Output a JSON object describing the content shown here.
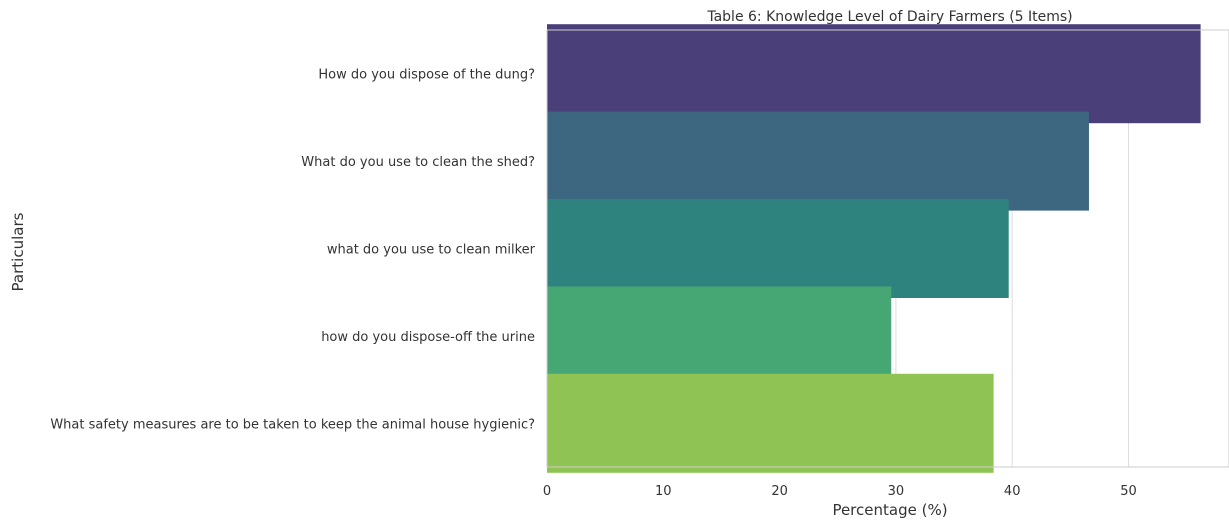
{
  "chart_data": {
    "type": "bar",
    "orientation": "horizontal",
    "title": "Table 6: Knowledge Level of Dairy Farmers (5 Items)",
    "xlabel": "Percentage (%)",
    "ylabel": "Particulars",
    "xlim": [
      0,
      57
    ],
    "xticks": [
      0,
      10,
      20,
      30,
      40,
      50
    ],
    "grid": true,
    "categories": [
      "How do you dispose of the dung?",
      "What do you use to clean the shed?",
      "what do you use to clean milker",
      "how do you dispose-off the urine",
      "What safety measures are to be taken to keep the animal house hygienic?"
    ],
    "values": [
      56.2,
      46.6,
      39.7,
      29.6,
      38.4
    ],
    "colors": [
      "#4b3f7a",
      "#3d6680",
      "#2f837e",
      "#46a775",
      "#8fc455"
    ]
  }
}
